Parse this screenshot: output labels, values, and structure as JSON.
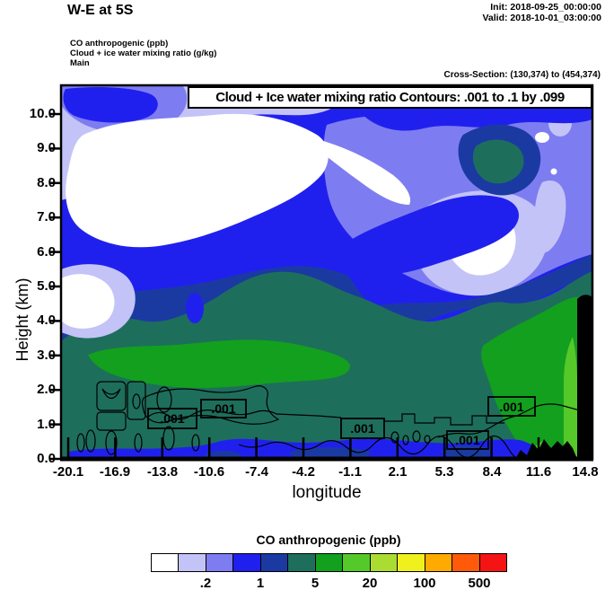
{
  "header": {
    "title": "W-E at 5S",
    "init": "Init: 2018-09-25_00:00:00",
    "valid": "Valid: 2018-10-01_03:00:00"
  },
  "info": {
    "line1": "CO anthropogenic   (ppb)",
    "line2": "Cloud + ice water mixing ratio   (g/kg)",
    "line3": "Main",
    "cross_section": "Cross-Section: (130,374) to (454,374)"
  },
  "plot": {
    "box_title": "Cloud + Ice water mixing ratio Contours: .001 to .1 by .099",
    "contour_labels": [
      ".001",
      ".001",
      ".001",
      ".001",
      ".001"
    ]
  },
  "axes": {
    "y_label": "Height (km)",
    "x_label": "longitude",
    "y_ticks": [
      "10.0",
      "9.0",
      "8.0",
      "7.0",
      "6.0",
      "5.0",
      "4.0",
      "3.0",
      "2.0",
      "1.0",
      "0.0"
    ],
    "x_ticks": [
      "-20.1",
      "-16.9",
      "-13.8",
      "-10.6",
      "-7.4",
      "-4.2",
      "-1.1",
      "2.1",
      "5.3",
      "8.4",
      "11.6",
      "14.8"
    ]
  },
  "colorbar": {
    "title": "CO anthropogenic  (ppb)",
    "tick_labels": [
      ".2",
      "1",
      "5",
      "20",
      "100",
      "500"
    ],
    "colors": [
      "#ffffff",
      "#c3c3f7",
      "#7d7df1",
      "#2020ee",
      "#1a3aa2",
      "#1e6e5c",
      "#12a01e",
      "#55c82a",
      "#aadc32",
      "#f0f01e",
      "#ffaa00",
      "#ff5a0a",
      "#f51414"
    ]
  },
  "palette": {
    "white": "#ffffff",
    "lavender": "#c3c3f7",
    "periwinkle": "#7d7df1",
    "blue": "#2020ee",
    "navy": "#1a3aa2",
    "teal": "#1e6e5c",
    "green": "#12a01e",
    "bright_green": "#55c82a",
    "black": "#000000"
  },
  "chart_data": {
    "type": "heatmap",
    "title": "W-E at 5S",
    "subtitle": "Cross-Section: (130,374) to (454,374)",
    "fill_variable": "CO anthropogenic (ppb)",
    "overlay_variable": "Cloud + Ice water mixing ratio (g/kg)",
    "overlay_contour_levels_gkg": [
      0.001,
      0.1
    ],
    "overlay_contour_note": "Contours: .001 to .1 by .099",
    "xlabel": "longitude",
    "ylabel": "Height (km)",
    "x_ticks": [
      -20.1,
      -16.9,
      -13.8,
      -10.6,
      -7.4,
      -4.2,
      -1.1,
      2.1,
      5.3,
      8.4,
      11.6,
      14.8
    ],
    "y_ticks": [
      0,
      1,
      2,
      3,
      4,
      5,
      6,
      7,
      8,
      9,
      10
    ],
    "xlim": [
      -20.1,
      14.8
    ],
    "ylim": [
      0,
      10.8
    ],
    "colorbar_labeled_values_ppb": [
      0.2,
      1,
      5,
      20,
      100,
      500
    ],
    "fill_colors": [
      "#ffffff",
      "#c3c3f7",
      "#7d7df1",
      "#2020ee",
      "#1a3aa2",
      "#1e6e5c",
      "#12a01e",
      "#55c82a",
      "#aadc32",
      "#f0f01e",
      "#ffaa00",
      "#ff5a0a",
      "#f51414"
    ],
    "legend_position": "bottom",
    "init_time": "2018-09-25_00:00:00",
    "valid_time": "2018-10-01_03:00:00"
  }
}
